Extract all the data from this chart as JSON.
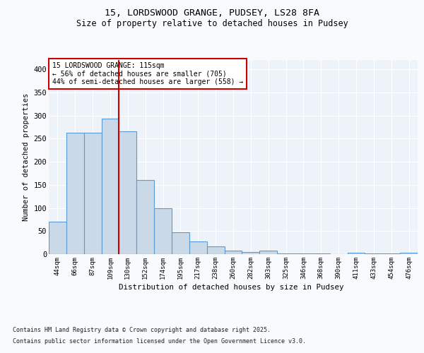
{
  "title_line1": "15, LORDSWOOD GRANGE, PUDSEY, LS28 8FA",
  "title_line2": "Size of property relative to detached houses in Pudsey",
  "xlabel": "Distribution of detached houses by size in Pudsey",
  "ylabel": "Number of detached properties",
  "bar_labels": [
    "44sqm",
    "66sqm",
    "87sqm",
    "109sqm",
    "130sqm",
    "152sqm",
    "174sqm",
    "195sqm",
    "217sqm",
    "238sqm",
    "260sqm",
    "282sqm",
    "303sqm",
    "325sqm",
    "346sqm",
    "368sqm",
    "390sqm",
    "411sqm",
    "433sqm",
    "454sqm",
    "476sqm"
  ],
  "bar_values": [
    70,
    262,
    262,
    293,
    265,
    160,
    99,
    48,
    27,
    17,
    8,
    5,
    7,
    2,
    2,
    2,
    0,
    3,
    2,
    2,
    3
  ],
  "bar_color": "#c9d9e8",
  "bar_edge_color": "#5b9bd5",
  "bar_edge_width": 0.8,
  "vline_x": 3.5,
  "vline_color": "#cc0000",
  "annotation_title": "15 LORDSWOOD GRANGE: 115sqm",
  "annotation_line2": "← 56% of detached houses are smaller (705)",
  "annotation_line3": "44% of semi-detached houses are larger (558) →",
  "annotation_box_color": "#ffffff",
  "annotation_border_color": "#cc0000",
  "ylim": [
    0,
    420
  ],
  "yticks": [
    0,
    50,
    100,
    150,
    200,
    250,
    300,
    350,
    400
  ],
  "background_color": "#eef2f9",
  "grid_color": "#ffffff",
  "fig_background": "#f8fafd",
  "footnote1": "Contains HM Land Registry data © Crown copyright and database right 2025.",
  "footnote2": "Contains public sector information licensed under the Open Government Licence v3.0."
}
